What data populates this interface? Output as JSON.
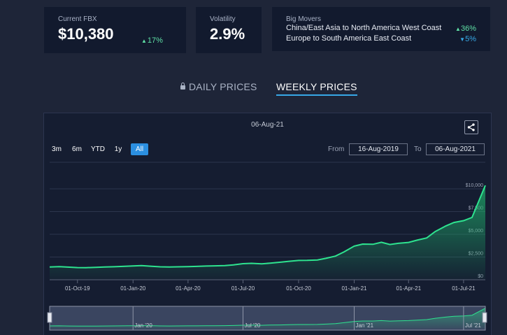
{
  "summary": {
    "fbx": {
      "label": "Current FBX",
      "value": "$10,380",
      "change": "17%"
    },
    "volatility": {
      "label": "Volatility",
      "value": "2.9%"
    },
    "big_movers": {
      "label": "Big Movers",
      "items": [
        {
          "route": "China/East Asia to North America West Coast",
          "change": "36%",
          "direction": "up"
        },
        {
          "route": "Europe to South America East Coast",
          "change": "5%",
          "direction": "down"
        }
      ]
    }
  },
  "tabs": {
    "daily": "DAILY PRICES",
    "weekly": "WEEKLY PRICES",
    "active": "weekly"
  },
  "chart": {
    "date_label": "06-Aug-21",
    "range_buttons": [
      "3m",
      "6m",
      "YTD",
      "1y",
      "All"
    ],
    "active_range": "All",
    "from_label": "From",
    "from_value": "16-Aug-2019",
    "to_label": "To",
    "to_value": "06-Aug-2021",
    "navigator_labels": [
      "Jan '20",
      "Jul '20",
      "Jan '21",
      "Jul '21"
    ]
  },
  "colors": {
    "accent": "#2b8fe0",
    "line": "#2ee38f",
    "up": "#5fe0a6",
    "down": "#37a8e6"
  },
  "chart_data": {
    "type": "area",
    "x_ticks": [
      "01-Oct-19",
      "01-Jan-20",
      "01-Apr-20",
      "01-Jul-20",
      "01-Oct-20",
      "01-Jan-21",
      "01-Apr-21",
      "01-Jul-21"
    ],
    "y_ticks": [
      "$0",
      "$2,500",
      "$5,000",
      "$7,500",
      "$10,000"
    ],
    "ylim": [
      0,
      11000
    ],
    "xlim": [
      "2019-08-16",
      "2021-08-06"
    ],
    "series": [
      {
        "x": [
          "2019-08-16",
          "2019-09-01",
          "2019-09-15",
          "2019-10-01",
          "2019-10-15",
          "2019-11-01",
          "2019-11-15",
          "2019-12-01",
          "2019-12-15",
          "2020-01-01",
          "2020-01-15",
          "2020-02-01",
          "2020-02-15",
          "2020-03-01",
          "2020-03-15",
          "2020-04-01",
          "2020-04-15",
          "2020-05-01",
          "2020-05-15",
          "2020-06-01",
          "2020-06-15",
          "2020-07-01",
          "2020-07-15",
          "2020-08-01",
          "2020-08-15",
          "2020-09-01",
          "2020-09-15",
          "2020-10-01",
          "2020-10-15",
          "2020-11-01",
          "2020-11-15",
          "2020-12-01",
          "2020-12-15",
          "2021-01-01",
          "2021-01-15",
          "2021-02-01",
          "2021-02-15",
          "2021-03-01",
          "2021-03-15",
          "2021-04-01",
          "2021-04-15",
          "2021-05-01",
          "2021-05-15",
          "2021-06-01",
          "2021-06-15",
          "2021-07-01",
          "2021-07-15",
          "2021-08-06"
        ],
        "values": [
          1410,
          1450,
          1390,
          1340,
          1330,
          1360,
          1400,
          1430,
          1470,
          1520,
          1550,
          1480,
          1420,
          1400,
          1420,
          1440,
          1470,
          1510,
          1530,
          1560,
          1640,
          1770,
          1810,
          1750,
          1830,
          1930,
          2030,
          2120,
          2130,
          2180,
          2350,
          2600,
          3050,
          3700,
          3920,
          3900,
          4120,
          3880,
          4010,
          4110,
          4350,
          4600,
          5300,
          5900,
          6300,
          6500,
          6850,
          10380
        ]
      }
    ]
  }
}
